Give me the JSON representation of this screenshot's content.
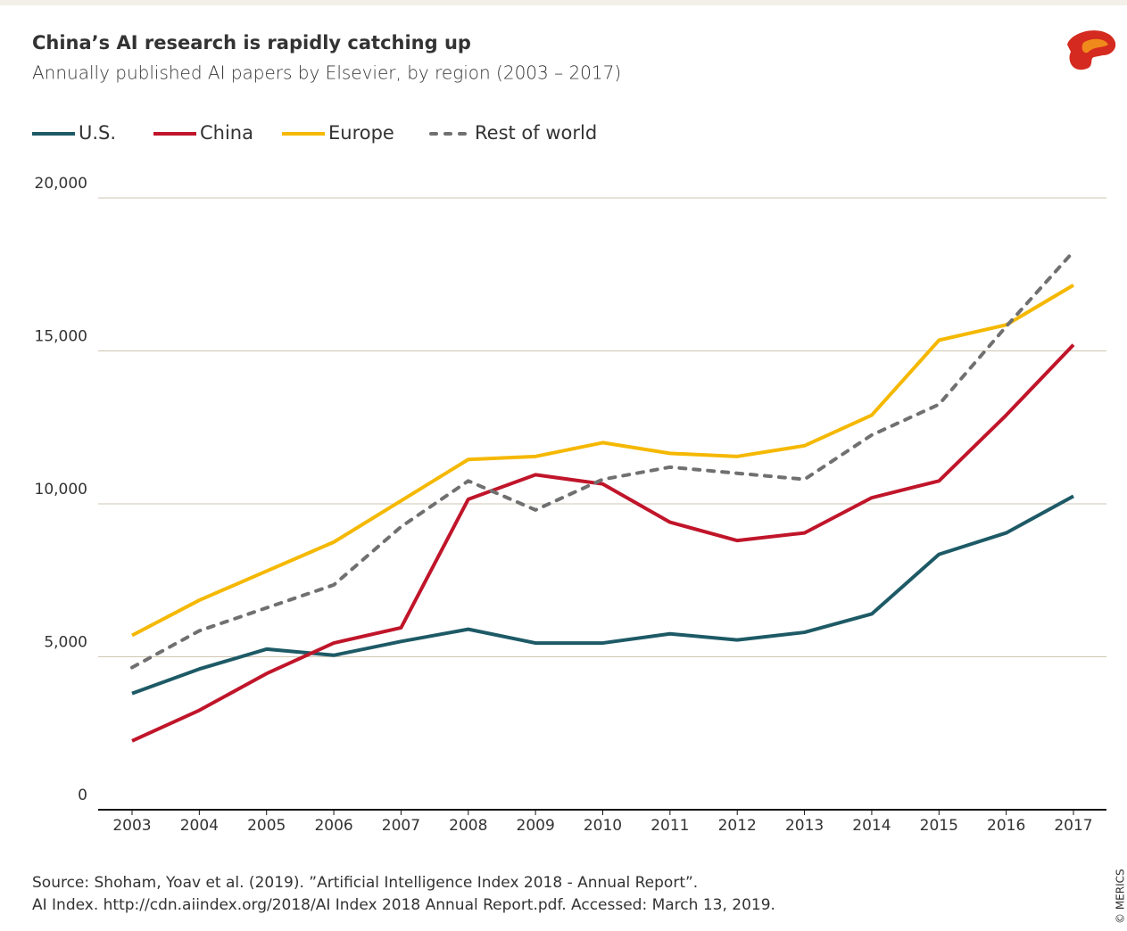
{
  "chart_data": {
    "type": "line",
    "title": "China’s AI research is rapidly catching up",
    "subtitle": "Annually published AI papers by Elsevier, by region (2003 – 2017)",
    "categories": [
      "2003",
      "2004",
      "2005",
      "2006",
      "2007",
      "2008",
      "2009",
      "2010",
      "2011",
      "2012",
      "2013",
      "2014",
      "2015",
      "2016",
      "2017"
    ],
    "series": [
      {
        "name": "U.S.",
        "color": "#1d5a66",
        "dashed": false,
        "values": [
          3800,
          4600,
          5250,
          5050,
          5500,
          5900,
          5450,
          5450,
          5750,
          5550,
          5800,
          6400,
          8350,
          9050,
          10250
        ]
      },
      {
        "name": "China",
        "color": "#c0152a",
        "dashed": false,
        "values": [
          2250,
          3250,
          4450,
          5450,
          5950,
          10150,
          10950,
          10650,
          9400,
          8800,
          9050,
          10200,
          10750,
          12900,
          15200
        ]
      },
      {
        "name": "Europe",
        "color": "#f5b800",
        "dashed": false,
        "values": [
          5700,
          6850,
          7800,
          8750,
          10100,
          11450,
          11550,
          12000,
          11650,
          11550,
          11900,
          12900,
          15350,
          15850,
          17150
        ]
      },
      {
        "name": "Rest of world",
        "color": "#707070",
        "dashed": true,
        "values": [
          4650,
          5850,
          6600,
          7350,
          9250,
          10750,
          9800,
          10800,
          11200,
          11000,
          10800,
          12250,
          13250,
          15800,
          18250
        ]
      }
    ],
    "ylim": [
      0,
      20000
    ],
    "yticks": [
      0,
      {
        "value": 5000,
        "label": "5,000"
      },
      {
        "value": 10000,
        "label": "10,000"
      },
      {
        "value": 15000,
        "label": "15,000"
      },
      {
        "value": 20000,
        "label": "20,000"
      }
    ],
    "grid": true,
    "source": [
      "Source: Shoham, Yoav et al. (2019). ”Artificial Intelligence Index 2018 - Annual Report”.",
      "AI Index. http://cdn.aiindex.org/2018/AI Index 2018 Annual Report.pdf. Accessed: March 13, 2019."
    ],
    "credit": "© MERICS"
  }
}
